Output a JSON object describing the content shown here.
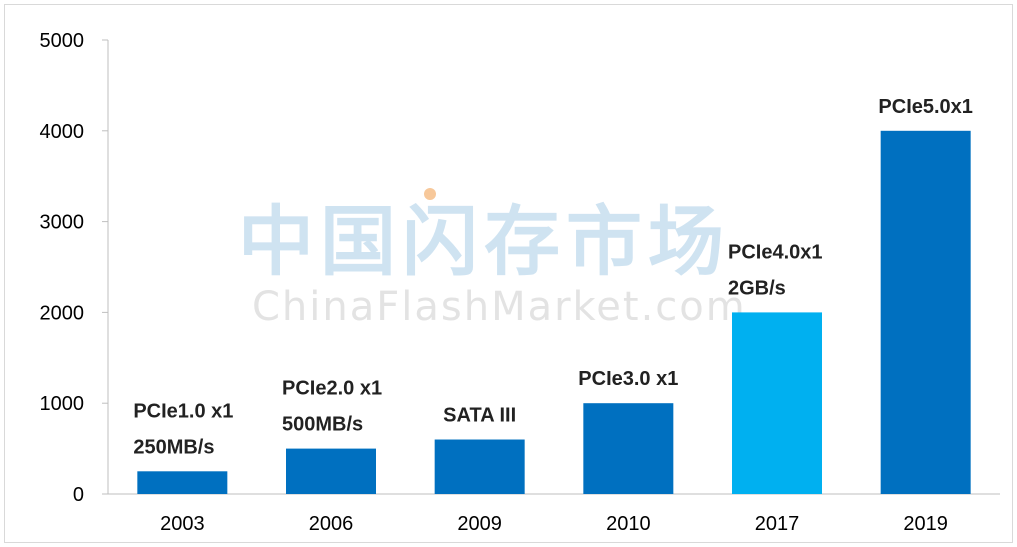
{
  "watermark": {
    "chinese": "中国闪存市场",
    "english": "ChinaFlashMarket.com",
    "color_cn": "#cfe3f1",
    "color_en": "#e3e3e3",
    "dot_color": "#f7c89a"
  },
  "chart_data": {
    "type": "bar",
    "categories": [
      "2003",
      "2006",
      "2009",
      "2010",
      "2017",
      "2019"
    ],
    "values": [
      250,
      500,
      600,
      1000,
      2000,
      4000
    ],
    "yticks": [
      0,
      1000,
      2000,
      3000,
      4000,
      5000
    ],
    "ylim": [
      0,
      5000
    ],
    "grid": false,
    "colors": [
      "#0070c0",
      "#0070c0",
      "#0070c0",
      "#0070c0",
      "#00b0f0",
      "#0070c0"
    ],
    "data_labels": [
      [
        "PCIe1.0 x1",
        "250MB/s"
      ],
      [
        "PCIe2.0 x1",
        "500MB/s"
      ],
      [
        "SATA  III"
      ],
      [
        "PCIe3.0 x1"
      ],
      [
        "PCIe4.0x1",
        "2GB/s"
      ],
      [
        "PCIe5.0x1"
      ]
    ]
  }
}
